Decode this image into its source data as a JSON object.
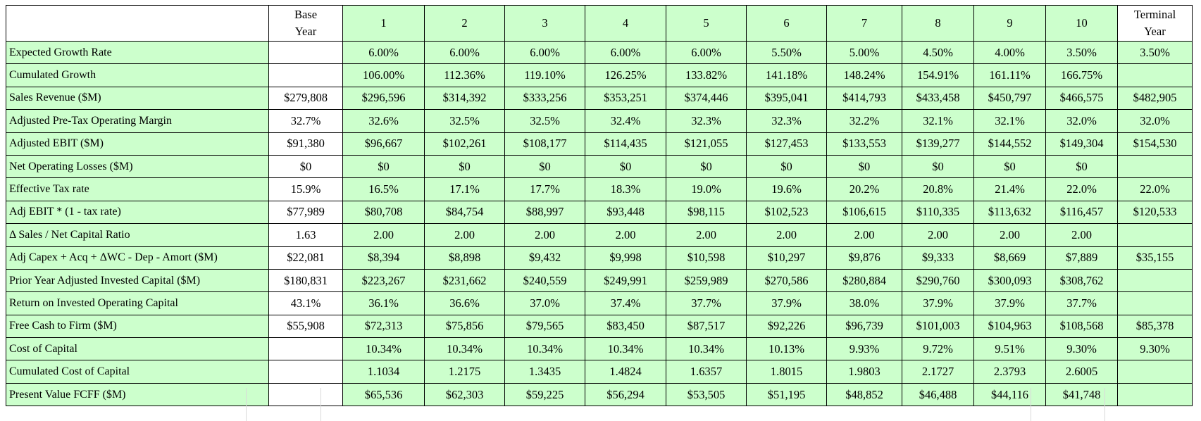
{
  "table": {
    "header": {
      "label": "",
      "base": [
        "Base",
        "Year"
      ],
      "years": [
        "1",
        "2",
        "3",
        "4",
        "5",
        "6",
        "7",
        "8",
        "9",
        "10"
      ],
      "terminal": [
        "Terminal",
        "Year"
      ]
    },
    "rows": [
      {
        "label": "Expected Growth Rate",
        "base": "",
        "years": [
          "6.00%",
          "6.00%",
          "6.00%",
          "6.00%",
          "6.00%",
          "5.50%",
          "5.00%",
          "4.50%",
          "4.00%",
          "3.50%"
        ],
        "terminal": "3.50%"
      },
      {
        "label": "Cumulated Growth",
        "base": "",
        "years": [
          "106.00%",
          "112.36%",
          "119.10%",
          "126.25%",
          "133.82%",
          "141.18%",
          "148.24%",
          "154.91%",
          "161.11%",
          "166.75%"
        ],
        "terminal": ""
      },
      {
        "label": "Sales Revenue ($M)",
        "base": "$279,808",
        "years": [
          "$296,596",
          "$314,392",
          "$333,256",
          "$353,251",
          "$374,446",
          "$395,041",
          "$414,793",
          "$433,458",
          "$450,797",
          "$466,575"
        ],
        "terminal": "$482,905"
      },
      {
        "label": "Adjusted  Pre-Tax Operating Margin",
        "base": "32.7%",
        "years": [
          "32.6%",
          "32.5%",
          "32.5%",
          "32.4%",
          "32.3%",
          "32.3%",
          "32.2%",
          "32.1%",
          "32.1%",
          "32.0%"
        ],
        "terminal": "32.0%"
      },
      {
        "label": "Adjusted EBIT ($M)",
        "base": "$91,380",
        "years": [
          "$96,667",
          "$102,261",
          "$108,177",
          "$114,435",
          "$121,055",
          "$127,453",
          "$133,553",
          "$139,277",
          "$144,552",
          "$149,304"
        ],
        "terminal": "$154,530"
      },
      {
        "label": "Net Operating Losses ($M)",
        "base": "$0",
        "years": [
          "$0",
          "$0",
          "$0",
          "$0",
          "$0",
          "$0",
          "$0",
          "$0",
          "$0",
          "$0"
        ],
        "terminal": ""
      },
      {
        "label": "Effective Tax rate",
        "base": "15.9%",
        "years": [
          "16.5%",
          "17.1%",
          "17.7%",
          "18.3%",
          "19.0%",
          "19.6%",
          "20.2%",
          "20.8%",
          "21.4%",
          "22.0%"
        ],
        "terminal": "22.0%"
      },
      {
        "label": "Adj EBIT * (1 - tax rate)",
        "base": "$77,989",
        "years": [
          "$80,708",
          "$84,754",
          "$88,997",
          "$93,448",
          "$98,115",
          "$102,523",
          "$106,615",
          "$110,335",
          "$113,632",
          "$116,457"
        ],
        "terminal": "$120,533"
      },
      {
        "label": "Δ Sales / Net Capital Ratio",
        "base": "1.63",
        "years": [
          "2.00",
          "2.00",
          "2.00",
          "2.00",
          "2.00",
          "2.00",
          "2.00",
          "2.00",
          "2.00",
          "2.00"
        ],
        "terminal": ""
      },
      {
        "label": "Adj Capex + Acq + ΔWC - Dep - Amort ($M)",
        "base": "$22,081",
        "years": [
          "$8,394",
          "$8,898",
          "$9,432",
          "$9,998",
          "$10,598",
          "$10,297",
          "$9,876",
          "$9,333",
          "$8,669",
          "$7,889"
        ],
        "terminal": "$35,155"
      },
      {
        "label": "Prior Year Adjusted Invested Capital ($M)",
        "base": "$180,831",
        "years": [
          "$223,267",
          "$231,662",
          "$240,559",
          "$249,991",
          "$259,989",
          "$270,586",
          "$280,884",
          "$290,760",
          "$300,093",
          "$308,762"
        ],
        "terminal": ""
      },
      {
        "label": "Return on Invested Operating Capital",
        "base": "43.1%",
        "years": [
          "36.1%",
          "36.6%",
          "37.0%",
          "37.4%",
          "37.7%",
          "37.9%",
          "38.0%",
          "37.9%",
          "37.9%",
          "37.7%"
        ],
        "terminal": ""
      },
      {
        "label": "Free Cash to Firm ($M)",
        "base": "$55,908",
        "years": [
          "$72,313",
          "$75,856",
          "$79,565",
          "$83,450",
          "$87,517",
          "$92,226",
          "$96,739",
          "$101,003",
          "$104,963",
          "$108,568"
        ],
        "terminal": "$85,378"
      },
      {
        "label": "Cost of Capital",
        "base": "",
        "years": [
          "10.34%",
          "10.34%",
          "10.34%",
          "10.34%",
          "10.34%",
          "10.13%",
          "9.93%",
          "9.72%",
          "9.51%",
          "9.30%"
        ],
        "terminal": "9.30%"
      },
      {
        "label": "Cumulated Cost of Capital",
        "base": "",
        "years": [
          "1.1034",
          "1.2175",
          "1.3435",
          "1.4824",
          "1.6357",
          "1.8015",
          "1.9803",
          "2.1727",
          "2.3793",
          "2.6005"
        ],
        "terminal": ""
      },
      {
        "label": "Present Value FCFF ($M)",
        "base": "",
        "years": [
          "$65,536",
          "$62,303",
          "$59,225",
          "$56,294",
          "$53,505",
          "$51,195",
          "$48,852",
          "$46,488",
          "$44,116",
          "$41,748"
        ],
        "terminal": "",
        "bold": true
      }
    ]
  }
}
